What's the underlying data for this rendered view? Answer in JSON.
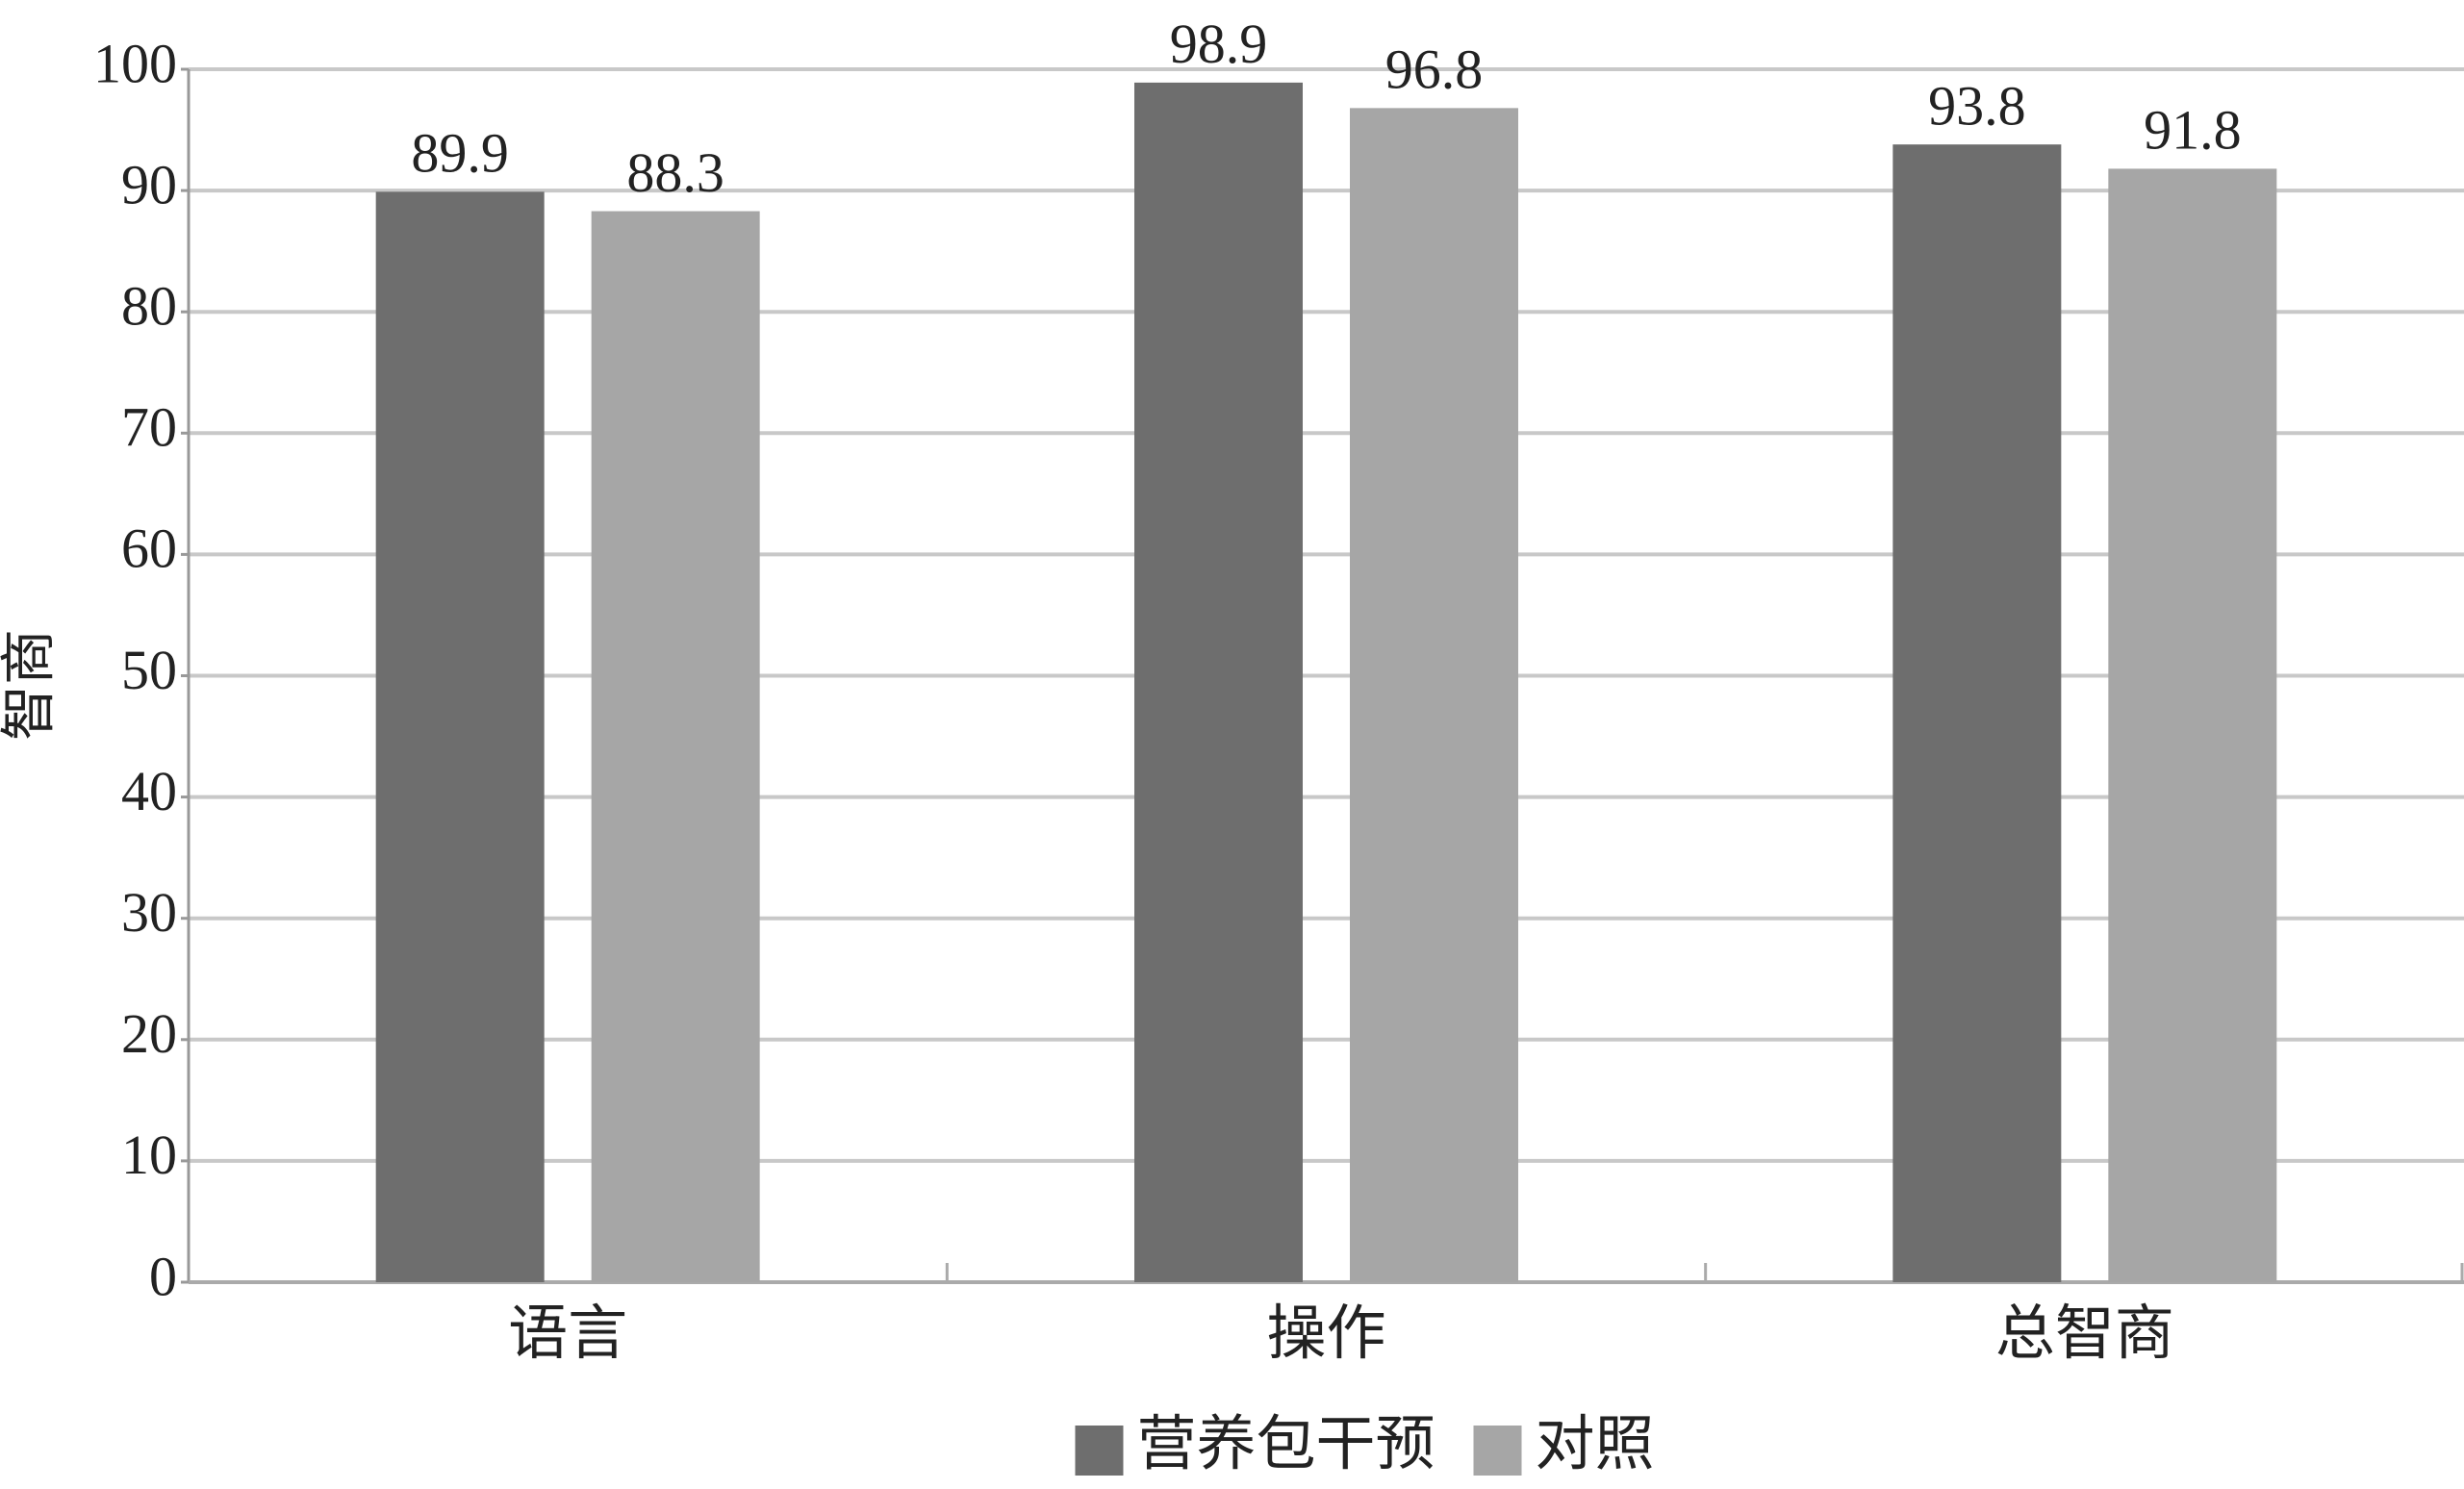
{
  "chart_data": {
    "type": "bar",
    "y_label": "智商",
    "categories": [
      "语言",
      "操作",
      "总智商"
    ],
    "series": [
      {
        "name": "营养包干预",
        "color": "#6e6e6e",
        "values": [
          89.9,
          98.9,
          93.8
        ]
      },
      {
        "name": "对照",
        "color": "#a6a6a6",
        "values": [
          88.3,
          96.8,
          91.8
        ]
      }
    ],
    "ylim": [
      0,
      100
    ],
    "yticks": [
      0,
      10,
      20,
      30,
      40,
      50,
      60,
      70,
      80,
      90,
      100
    ],
    "grid": true,
    "legend": "bottom"
  }
}
